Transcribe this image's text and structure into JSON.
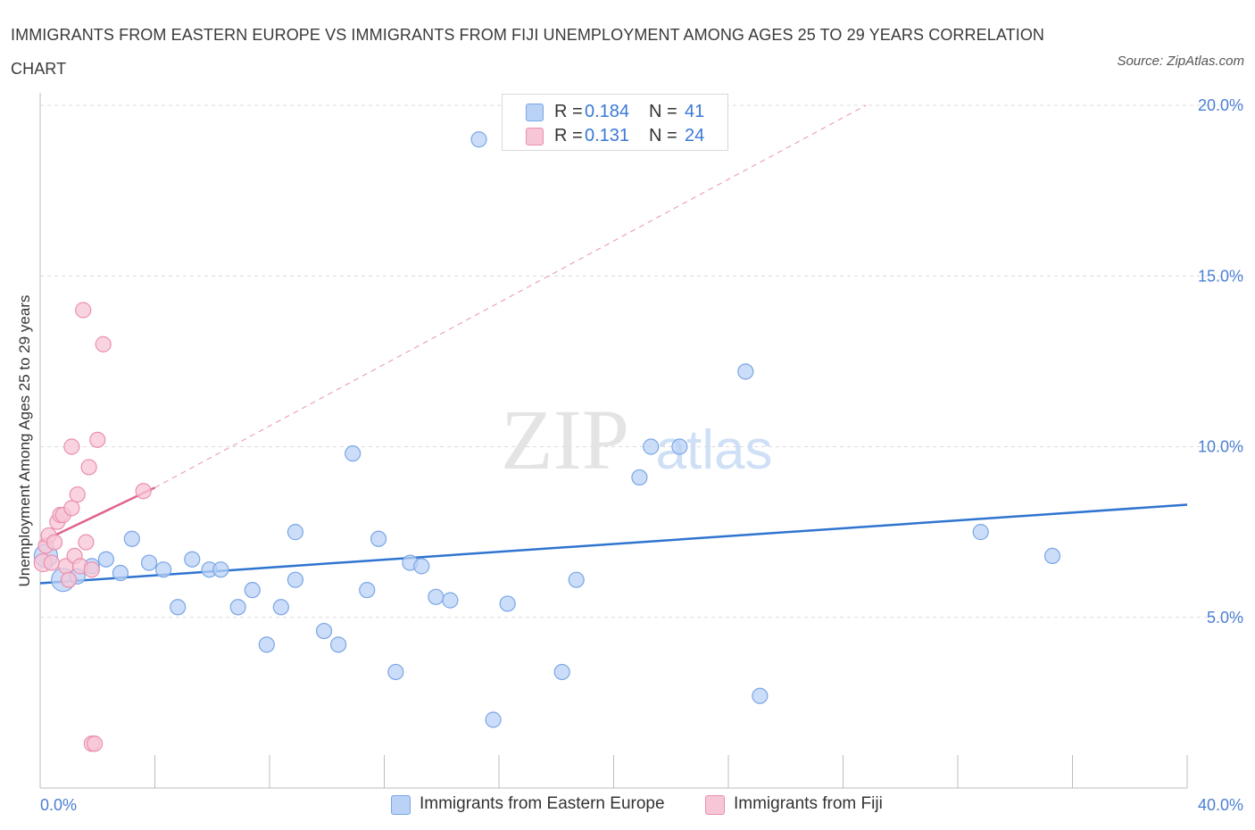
{
  "header": {
    "title": "IMMIGRANTS FROM EASTERN EUROPE VS IMMIGRANTS FROM FIJI UNEMPLOYMENT AMONG AGES 25 TO 29 YEARS CORRELATION CHART",
    "source": "Source: ZipAtlas.com"
  },
  "watermark": {
    "zip": "ZIP",
    "atlas": "atlas"
  },
  "legend": {
    "rows": [
      {
        "r_label": "R =",
        "r_value": "0.184",
        "n_label": "N =",
        "n_value": "41"
      },
      {
        "r_label": "R =",
        "r_value": "0.131",
        "n_label": "N =",
        "n_value": "24"
      }
    ],
    "bottom": [
      "Immigrants from Eastern Europe",
      "Immigrants from Fiji"
    ]
  },
  "colors": {
    "blue_fill": "#b9d2f5",
    "blue_stroke": "#7aa6e6",
    "blue_line": "#2f74d0",
    "pink_fill": "#f7c6d6",
    "pink_stroke": "#ea8fae",
    "pink_line": "#e0648f",
    "grid": "#dcdcdc",
    "tick_text": "#4a7fd4"
  },
  "chart_data": {
    "type": "scatter",
    "title": "IMMIGRANTS FROM EASTERN EUROPE VS IMMIGRANTS FROM FIJI UNEMPLOYMENT AMONG AGES 25 TO 29 YEARS CORRELATION CHART",
    "xlabel": "",
    "ylabel": "Unemployment Among Ages 25 to 29 years",
    "xlim": [
      0,
      40
    ],
    "ylim": [
      0,
      20
    ],
    "x_tick_labels": [
      "0.0%",
      "40.0%"
    ],
    "y_ticks": [
      5,
      10,
      15,
      20
    ],
    "y_tick_labels": [
      "5.0%",
      "10.0%",
      "15.0%",
      "20.0%"
    ],
    "grid": true,
    "legend_position": "top-center",
    "series": [
      {
        "name": "Immigrants from Eastern Europe",
        "R": 0.184,
        "N": 41,
        "trend": {
          "x": [
            0,
            40
          ],
          "y": [
            6.0,
            8.3
          ],
          "style": "solid"
        },
        "points": [
          {
            "x": 0.2,
            "y": 6.8,
            "big": true
          },
          {
            "x": 0.8,
            "y": 6.1,
            "big": true
          },
          {
            "x": 1.3,
            "y": 6.2
          },
          {
            "x": 1.8,
            "y": 6.5
          },
          {
            "x": 2.3,
            "y": 6.7
          },
          {
            "x": 2.8,
            "y": 6.3
          },
          {
            "x": 3.2,
            "y": 7.3
          },
          {
            "x": 3.8,
            "y": 6.6
          },
          {
            "x": 4.3,
            "y": 6.4
          },
          {
            "x": 4.8,
            "y": 5.3
          },
          {
            "x": 5.3,
            "y": 6.7
          },
          {
            "x": 5.9,
            "y": 6.4
          },
          {
            "x": 6.3,
            "y": 6.4
          },
          {
            "x": 6.9,
            "y": 5.3
          },
          {
            "x": 7.4,
            "y": 5.8
          },
          {
            "x": 7.9,
            "y": 4.2
          },
          {
            "x": 8.4,
            "y": 5.3
          },
          {
            "x": 8.9,
            "y": 7.5
          },
          {
            "x": 8.9,
            "y": 6.1
          },
          {
            "x": 9.9,
            "y": 4.6
          },
          {
            "x": 10.4,
            "y": 4.2
          },
          {
            "x": 10.9,
            "y": 9.8
          },
          {
            "x": 11.4,
            "y": 5.8
          },
          {
            "x": 11.8,
            "y": 7.3
          },
          {
            "x": 12.4,
            "y": 3.4
          },
          {
            "x": 12.9,
            "y": 6.6
          },
          {
            "x": 13.3,
            "y": 6.5
          },
          {
            "x": 13.8,
            "y": 5.6
          },
          {
            "x": 14.3,
            "y": 5.5
          },
          {
            "x": 15.3,
            "y": 19.0
          },
          {
            "x": 15.8,
            "y": 2.0
          },
          {
            "x": 16.3,
            "y": 5.4
          },
          {
            "x": 18.2,
            "y": 3.4
          },
          {
            "x": 18.7,
            "y": 6.1
          },
          {
            "x": 20.9,
            "y": 9.1
          },
          {
            "x": 21.3,
            "y": 10.0
          },
          {
            "x": 22.3,
            "y": 10.0
          },
          {
            "x": 24.6,
            "y": 12.2
          },
          {
            "x": 25.1,
            "y": 2.7
          },
          {
            "x": 32.8,
            "y": 7.5
          },
          {
            "x": 35.3,
            "y": 6.8
          }
        ]
      },
      {
        "name": "Immigrants from Fiji",
        "R": 0.131,
        "N": 24,
        "trend": {
          "x": [
            0,
            4.0
          ],
          "y": [
            7.2,
            8.8
          ],
          "style": "solid"
        },
        "trend_extension": {
          "x": [
            4.0,
            28.8
          ],
          "y": [
            8.8,
            20.0
          ],
          "style": "dashed"
        },
        "points": [
          {
            "x": 0.1,
            "y": 6.6,
            "big": true
          },
          {
            "x": 0.2,
            "y": 7.1
          },
          {
            "x": 0.3,
            "y": 7.4
          },
          {
            "x": 0.4,
            "y": 6.6
          },
          {
            "x": 0.5,
            "y": 7.2
          },
          {
            "x": 0.6,
            "y": 7.8
          },
          {
            "x": 0.7,
            "y": 8.0
          },
          {
            "x": 0.8,
            "y": 8.0
          },
          {
            "x": 0.9,
            "y": 6.5
          },
          {
            "x": 1.0,
            "y": 6.1
          },
          {
            "x": 1.1,
            "y": 8.2
          },
          {
            "x": 1.1,
            "y": 10.0
          },
          {
            "x": 1.2,
            "y": 6.8
          },
          {
            "x": 1.3,
            "y": 8.6
          },
          {
            "x": 1.4,
            "y": 6.5
          },
          {
            "x": 1.5,
            "y": 14.0
          },
          {
            "x": 1.6,
            "y": 7.2
          },
          {
            "x": 1.7,
            "y": 9.4
          },
          {
            "x": 1.8,
            "y": 6.4
          },
          {
            "x": 1.8,
            "y": 1.3
          },
          {
            "x": 1.9,
            "y": 1.3
          },
          {
            "x": 2.0,
            "y": 10.2
          },
          {
            "x": 2.2,
            "y": 13.0
          },
          {
            "x": 3.6,
            "y": 8.7
          }
        ]
      }
    ]
  }
}
